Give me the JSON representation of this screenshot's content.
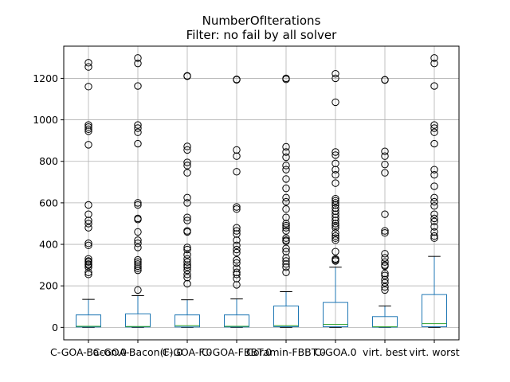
{
  "chart_data": {
    "type": "box",
    "title": "NumberOfIterations",
    "subtitle": "Filter: no fail by all solver",
    "xlabel": "",
    "ylabel": "",
    "ylim": [
      -60,
      1355
    ],
    "yticks": [
      0,
      200,
      400,
      600,
      800,
      1000,
      1200
    ],
    "grid": true,
    "colors": {
      "box": "#1f77b4",
      "median": "#2ca02c",
      "whisker": "#1f77b4",
      "cap": "#000000",
      "flier": "#000000",
      "grid": "#b0b0b0"
    },
    "categories": [
      "C-GOA-Bacon.0",
      "C-GOA-Bacon(F).0",
      "C-GOA-F.0",
      "C-GOA-FBBT.0",
      "Coramin-FBBT.0",
      "C-GOA.0",
      "virt. best",
      "virt. worst"
    ],
    "boxes": [
      {
        "q1": 2,
        "median": 5,
        "q3": 60,
        "whislo": 0,
        "whishi": 135,
        "fliers": [
          1275,
          1255,
          1160,
          975,
          965,
          955,
          945,
          880,
          590,
          545,
          515,
          500,
          480,
          405,
          395,
          330,
          320,
          315,
          305,
          300,
          290,
          265,
          255
        ]
      },
      {
        "q1": 2,
        "median": 4,
        "q3": 65,
        "whislo": 0,
        "whishi": 153,
        "fliers": [
          1298,
          1272,
          1163,
          975,
          960,
          940,
          885,
          600,
          590,
          525,
          520,
          460,
          420,
          405,
          385,
          325,
          315,
          305,
          295,
          285,
          275,
          180
        ]
      },
      {
        "q1": 2,
        "median": 8,
        "q3": 60,
        "whislo": 0,
        "whishi": 133,
        "fliers": [
          1212,
          1210,
          872,
          855,
          795,
          780,
          745,
          625,
          600,
          530,
          515,
          465,
          460,
          385,
          375,
          350,
          330,
          315,
          300,
          290,
          275,
          255,
          240,
          210
        ]
      },
      {
        "q1": 2,
        "median": 5,
        "q3": 60,
        "whislo": 0,
        "whishi": 137,
        "fliers": [
          1195,
          1193,
          855,
          825,
          750,
          580,
          570,
          480,
          465,
          450,
          420,
          395,
          375,
          360,
          325,
          310,
          285,
          265,
          255,
          235,
          205
        ]
      },
      {
        "q1": 3,
        "median": 8,
        "q3": 103,
        "whislo": 0,
        "whishi": 172,
        "fliers": [
          1200,
          1195,
          870,
          845,
          820,
          780,
          760,
          715,
          670,
          625,
          605,
          570,
          530,
          500,
          490,
          480,
          465,
          430,
          420,
          415,
          380,
          365,
          335,
          320,
          305,
          290,
          265
        ]
      },
      {
        "q1": 3,
        "median": 15,
        "q3": 120,
        "whislo": 0,
        "whishi": 290,
        "fliers": [
          1222,
          1200,
          1085,
          845,
          830,
          790,
          760,
          735,
          695,
          620,
          610,
          600,
          590,
          575,
          560,
          545,
          530,
          515,
          500,
          490,
          480,
          455,
          440,
          430,
          420,
          365,
          330,
          325,
          320
        ]
      },
      {
        "q1": 1,
        "median": 3,
        "q3": 52,
        "whislo": 0,
        "whishi": 103,
        "fliers": [
          1193,
          1192,
          848,
          825,
          785,
          745,
          545,
          465,
          455,
          355,
          335,
          315,
          300,
          295,
          260,
          250,
          230,
          215,
          195,
          180
        ]
      },
      {
        "q1": 3,
        "median": 18,
        "q3": 158,
        "whislo": 0,
        "whishi": 342,
        "fliers": [
          1298,
          1272,
          1163,
          975,
          960,
          940,
          885,
          760,
          735,
          680,
          625,
          605,
          585,
          545,
          525,
          510,
          485,
          460,
          440,
          430
        ]
      }
    ]
  }
}
